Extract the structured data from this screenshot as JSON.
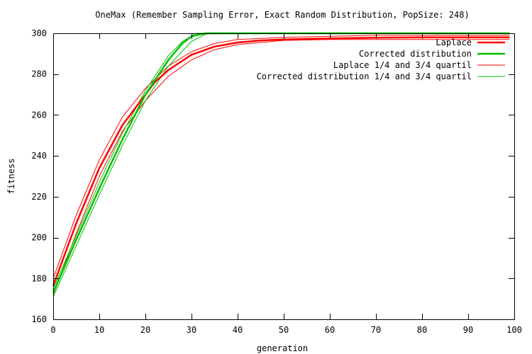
{
  "chart_data": {
    "type": "line",
    "title": "OneMax (Remember Sampling Error, Exact Random Distribution, PopSize: 248)",
    "xlabel": "generation",
    "ylabel": "fitness",
    "xlim": [
      0,
      100
    ],
    "ylim": [
      160,
      300
    ],
    "xticks": [
      0,
      10,
      20,
      30,
      40,
      50,
      60,
      70,
      80,
      90,
      100
    ],
    "yticks": [
      160,
      180,
      200,
      220,
      240,
      260,
      280,
      300
    ],
    "grid": false,
    "legend_position": "top-right",
    "series": [
      {
        "name": "Laplace",
        "color": "#ff0000",
        "line_width": 2.5,
        "x": [
          0,
          5,
          10,
          15,
          20,
          22,
          25,
          30,
          35,
          40,
          45,
          50,
          60,
          70,
          80,
          90,
          99
        ],
        "y": [
          176.5,
          207,
          234,
          255,
          270,
          276,
          282,
          289.5,
          293.5,
          295.5,
          296.5,
          297,
          297.5,
          297.8,
          298,
          298,
          298
        ]
      },
      {
        "name": "Corrected distribution",
        "color": "#00c000",
        "line_width": 2.5,
        "x": [
          0,
          5,
          10,
          15,
          20,
          25,
          28,
          30,
          33,
          35,
          40,
          50,
          60,
          70,
          80,
          90,
          99
        ],
        "y": [
          173,
          199,
          224,
          248,
          270,
          287,
          295,
          298.5,
          300,
          300,
          300,
          300,
          300,
          300,
          300,
          300,
          300
        ]
      },
      {
        "name": "Laplace 1/4 and 3/4 quartil",
        "color": "#ff0000",
        "line_width": 1,
        "band": [
          {
            "x": [
              0,
              5,
              10,
              15,
              20,
              25,
              30,
              35,
              40,
              50,
              60,
              70,
              80,
              90,
              99
            ],
            "y": [
              180,
              211,
              238,
              259,
              273,
              284,
              291,
              295,
              297,
              298,
              298.5,
              299,
              299,
              299,
              299
            ]
          },
          {
            "x": [
              0,
              5,
              10,
              15,
              20,
              25,
              30,
              35,
              40,
              50,
              60,
              70,
              80,
              90,
              99
            ],
            "y": [
              172,
              202,
              230,
              252,
              267,
              279,
              287,
              292,
              294.5,
              296.5,
              297,
              297,
              297,
              297,
              297
            ]
          }
        ]
      },
      {
        "name": "Corrected distribution 1/4 and 3/4 quartil",
        "color": "#00c000",
        "line_width": 1,
        "band": [
          {
            "x": [
              0,
              5,
              10,
              15,
              20,
              25,
              28,
              31,
              35,
              40,
              50,
              60,
              70,
              80,
              90,
              99
            ],
            "y": [
              175,
              201,
              227,
              251,
              272,
              289,
              296,
              300,
              300,
              300,
              300,
              300,
              300,
              300,
              300,
              300
            ]
          },
          {
            "x": [
              0,
              5,
              10,
              15,
              20,
              25,
              30,
              33,
              35,
              40,
              50,
              60,
              70,
              80,
              90,
              99
            ],
            "y": [
              171,
              196,
              221,
              245,
              267,
              284,
              296,
              299.5,
              300,
              300,
              300,
              300,
              300,
              300,
              300,
              300
            ]
          }
        ]
      }
    ]
  }
}
